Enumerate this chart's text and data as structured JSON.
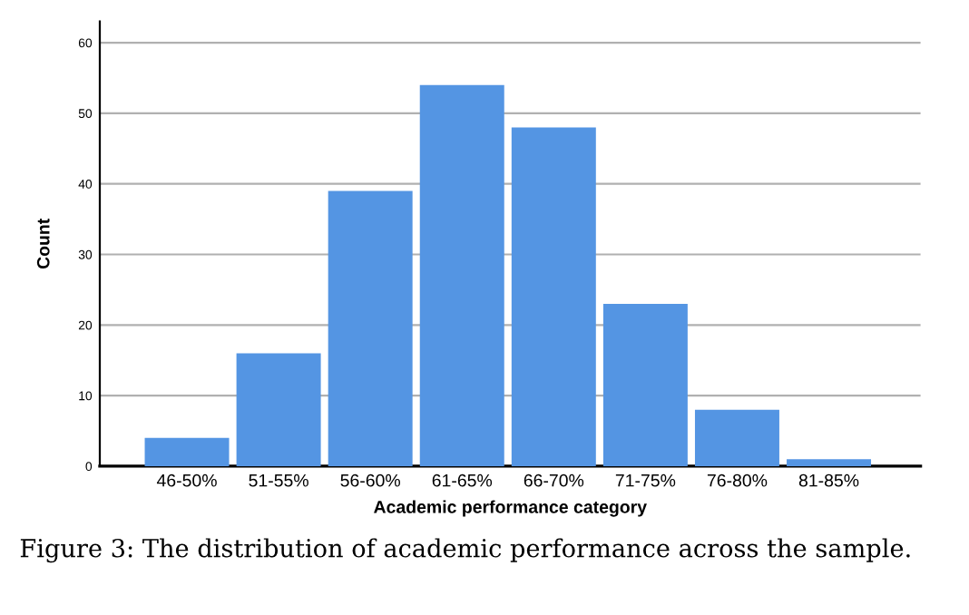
{
  "chart_data": {
    "type": "bar",
    "xlabel": "Academic performance category",
    "ylabel": "Count",
    "categories": [
      "46-50%",
      "51-55%",
      "56-60%",
      "61-65%",
      "66-70%",
      "71-75%",
      "76-80%",
      "81-85%"
    ],
    "values": [
      4,
      16,
      39,
      54,
      48,
      23,
      8,
      1
    ],
    "color": "#5495e3",
    "ylim": [
      0,
      63
    ],
    "yticks": [
      0,
      10,
      20,
      30,
      40,
      50,
      60
    ],
    "grid": "y",
    "annotations": [
      "Figure 3: The distribution of academic performance across the sample."
    ]
  }
}
